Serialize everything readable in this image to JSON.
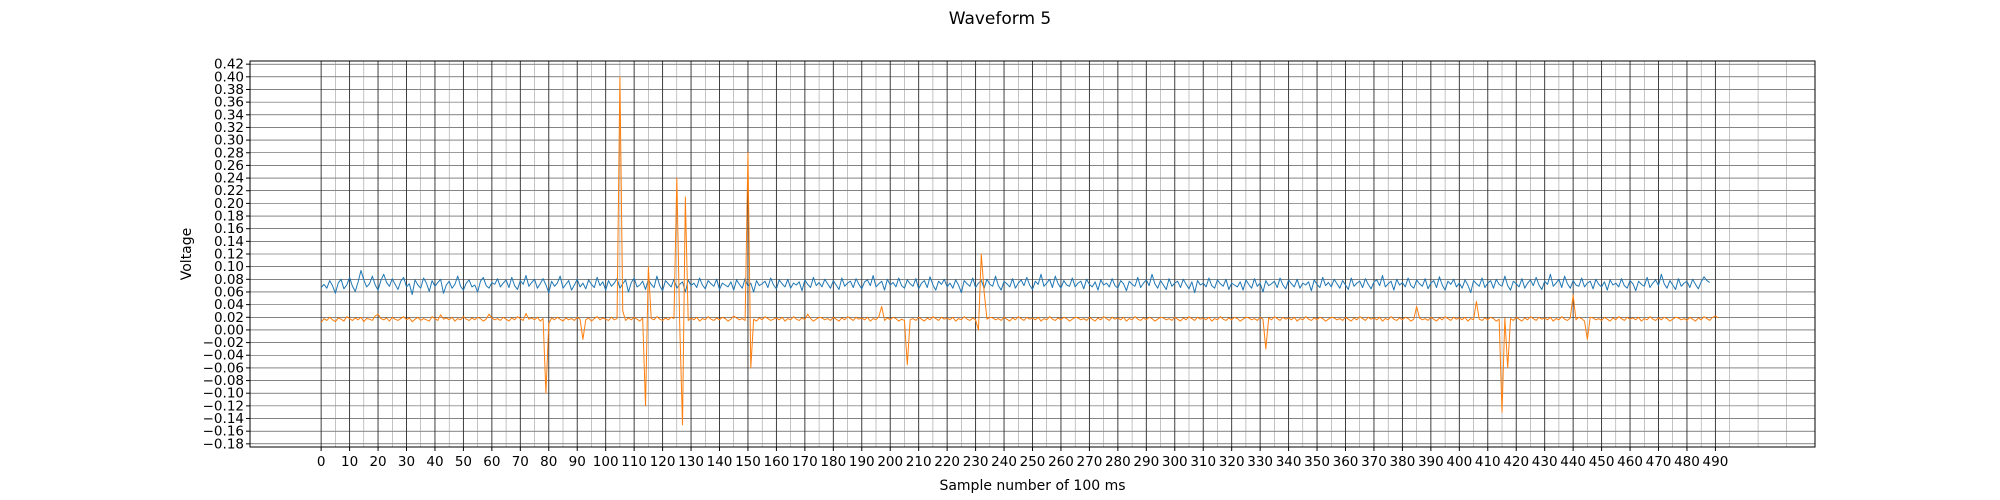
{
  "chart_data": {
    "type": "line",
    "title": "Waveform 5",
    "xlabel": "Sample number of 100 ms",
    "ylabel": "Voltage",
    "xlim": [
      -25,
      525
    ],
    "ylim": [
      -0.185,
      0.425
    ],
    "x_ticks": [
      0,
      10,
      20,
      30,
      40,
      50,
      60,
      70,
      80,
      90,
      100,
      110,
      120,
      130,
      140,
      150,
      160,
      170,
      180,
      190,
      200,
      210,
      220,
      230,
      240,
      250,
      260,
      270,
      280,
      290,
      300,
      310,
      320,
      330,
      340,
      350,
      360,
      370,
      380,
      390,
      400,
      410,
      420,
      430,
      440,
      450,
      460,
      470,
      480,
      490
    ],
    "x_tick_labels": [
      "0",
      "10",
      "20",
      "30",
      "40",
      "50",
      "60",
      "70",
      "80",
      "90",
      "100",
      "110",
      "120",
      "130",
      "140",
      "150",
      "160",
      "170",
      "180",
      "190",
      "200",
      "210",
      "220",
      "230",
      "240",
      "250",
      "260",
      "270",
      "280",
      "290",
      "300",
      "310",
      "320",
      "330",
      "340",
      "350",
      "360",
      "370",
      "380",
      "390",
      "400",
      "410",
      "420",
      "430",
      "440",
      "450",
      "460",
      "470",
      "480",
      "490"
    ],
    "y_ticks": [
      0.42,
      0.4,
      0.38,
      0.36,
      0.34,
      0.32,
      0.3,
      0.28,
      0.26,
      0.24,
      0.22,
      0.2,
      0.18,
      0.16,
      0.14,
      0.12,
      0.1,
      0.08,
      0.06,
      0.04,
      0.02,
      0.0,
      -0.02,
      -0.04,
      -0.06,
      -0.08,
      -0.1,
      -0.12,
      -0.14,
      -0.16,
      -0.18
    ],
    "y_tick_labels": [
      "0.42",
      "0.40",
      "0.38",
      "0.36",
      "0.34",
      "0.32",
      "0.30",
      "0.28",
      "0.26",
      "0.24",
      "0.22",
      "0.20",
      "0.18",
      "0.16",
      "0.14",
      "0.12",
      "0.10",
      "0.08",
      "0.06",
      "0.04",
      "0.02",
      "0.00",
      "−0.02",
      "−0.04",
      "−0.06",
      "−0.08",
      "−0.10",
      "−0.12",
      "−0.14",
      "−0.16",
      "−0.18"
    ],
    "grid": true,
    "grid_major_x_every": 10,
    "grid_minor_x_every": 5,
    "grid_y_every": 0.02,
    "series": [
      {
        "color": "#1f77b4",
        "x_start": 0,
        "x_step": 1,
        "values": [
          0.067,
          0.072,
          0.066,
          0.078,
          0.07,
          0.058,
          0.074,
          0.08,
          0.065,
          0.071,
          0.083,
          0.069,
          0.061,
          0.076,
          0.094,
          0.079,
          0.068,
          0.073,
          0.085,
          0.071,
          0.063,
          0.078,
          0.088,
          0.075,
          0.069,
          0.081,
          0.072,
          0.064,
          0.077,
          0.083,
          0.068,
          0.073,
          0.056,
          0.079,
          0.071,
          0.066,
          0.082,
          0.074,
          0.061,
          0.078,
          0.069,
          0.075,
          0.08,
          0.058,
          0.071,
          0.077,
          0.066,
          0.072,
          0.085,
          0.069,
          0.063,
          0.074,
          0.079,
          0.068,
          0.071,
          0.06,
          0.077,
          0.083,
          0.07,
          0.066,
          0.075,
          0.072,
          0.081,
          0.068,
          0.074,
          0.079,
          0.067,
          0.083,
          0.07,
          0.064,
          0.078,
          0.072,
          0.086,
          0.069,
          0.075,
          0.08,
          0.066,
          0.073,
          0.081,
          0.071,
          0.059,
          0.077,
          0.069,
          0.074,
          0.085,
          0.066,
          0.072,
          0.078,
          0.063,
          0.071,
          0.08,
          0.068,
          0.074,
          0.065,
          0.079,
          0.072,
          0.067,
          0.083,
          0.07,
          0.076,
          0.063,
          0.078,
          0.069,
          0.074,
          0.081,
          0.066,
          0.073,
          0.079,
          0.06,
          0.075,
          0.082,
          0.068,
          0.071,
          0.077,
          0.064,
          0.08,
          0.072,
          0.067,
          0.085,
          0.07,
          0.062,
          0.078,
          0.073,
          0.068,
          0.08,
          0.066,
          0.072,
          0.076,
          0.06,
          0.079,
          0.07,
          0.074,
          0.067,
          0.082,
          0.071,
          0.065,
          0.078,
          0.073,
          0.069,
          0.08,
          0.064,
          0.074,
          0.071,
          0.068,
          0.076,
          0.063,
          0.079,
          0.072,
          0.066,
          0.081,
          0.069,
          0.074,
          0.06,
          0.078,
          0.07,
          0.073,
          0.077,
          0.067,
          0.082,
          0.071,
          0.065,
          0.079,
          0.073,
          0.068,
          0.08,
          0.066,
          0.074,
          0.071,
          0.076,
          0.062,
          0.079,
          0.072,
          0.067,
          0.083,
          0.07,
          0.075,
          0.068,
          0.08,
          0.073,
          0.066,
          0.078,
          0.071,
          0.064,
          0.082,
          0.069,
          0.074,
          0.077,
          0.067,
          0.081,
          0.072,
          0.065,
          0.076,
          0.079,
          0.07,
          0.086,
          0.068,
          0.073,
          0.077,
          0.063,
          0.08,
          0.071,
          0.075,
          0.068,
          0.082,
          0.07,
          0.066,
          0.079,
          0.073,
          0.069,
          0.081,
          0.065,
          0.074,
          0.078,
          0.067,
          0.084,
          0.071,
          0.063,
          0.077,
          0.072,
          0.08,
          0.068,
          0.074,
          0.066,
          0.079,
          0.071,
          0.059,
          0.078,
          0.073,
          0.069,
          0.082,
          0.067,
          0.074,
          0.078,
          0.066,
          0.08,
          0.072,
          0.069,
          0.085,
          0.07,
          0.063,
          0.077,
          0.073,
          0.068,
          0.081,
          0.066,
          0.074,
          0.079,
          0.07,
          0.083,
          0.071,
          0.064,
          0.077,
          0.072,
          0.088,
          0.069,
          0.074,
          0.08,
          0.067,
          0.085,
          0.073,
          0.066,
          0.078,
          0.071,
          0.069,
          0.082,
          0.068,
          0.074,
          0.077,
          0.065,
          0.08,
          0.072,
          0.068,
          0.076,
          0.063,
          0.079,
          0.071,
          0.074,
          0.068,
          0.081,
          0.07,
          0.066,
          0.078,
          0.073,
          0.062,
          0.077,
          0.072,
          0.069,
          0.083,
          0.067,
          0.074,
          0.079,
          0.07,
          0.088,
          0.073,
          0.066,
          0.078,
          0.071,
          0.064,
          0.081,
          0.069,
          0.074,
          0.077,
          0.067,
          0.08,
          0.072,
          0.065,
          0.076,
          0.059,
          0.078,
          0.071,
          0.074,
          0.068,
          0.082,
          0.07,
          0.066,
          0.079,
          0.073,
          0.069,
          0.08,
          0.064,
          0.074,
          0.071,
          0.068,
          0.076,
          0.063,
          0.079,
          0.072,
          0.066,
          0.081,
          0.069,
          0.074,
          0.06,
          0.078,
          0.07,
          0.073,
          0.077,
          0.067,
          0.082,
          0.071,
          0.065,
          0.079,
          0.073,
          0.068,
          0.08,
          0.066,
          0.074,
          0.071,
          0.076,
          0.062,
          0.079,
          0.072,
          0.067,
          0.083,
          0.07,
          0.075,
          0.068,
          0.08,
          0.073,
          0.066,
          0.078,
          0.071,
          0.064,
          0.082,
          0.069,
          0.074,
          0.077,
          0.067,
          0.081,
          0.072,
          0.065,
          0.076,
          0.079,
          0.07,
          0.086,
          0.068,
          0.073,
          0.077,
          0.063,
          0.08,
          0.071,
          0.075,
          0.068,
          0.082,
          0.07,
          0.066,
          0.079,
          0.073,
          0.069,
          0.081,
          0.065,
          0.074,
          0.078,
          0.067,
          0.084,
          0.071,
          0.063,
          0.077,
          0.072,
          0.08,
          0.068,
          0.074,
          0.066,
          0.079,
          0.071,
          0.059,
          0.078,
          0.073,
          0.069,
          0.082,
          0.067,
          0.074,
          0.078,
          0.066,
          0.08,
          0.072,
          0.069,
          0.085,
          0.07,
          0.063,
          0.077,
          0.073,
          0.068,
          0.081,
          0.066,
          0.074,
          0.079,
          0.07,
          0.083,
          0.071,
          0.064,
          0.077,
          0.072,
          0.088,
          0.069,
          0.074,
          0.08,
          0.067,
          0.085,
          0.073,
          0.066,
          0.078,
          0.071,
          0.069,
          0.082,
          0.068,
          0.074,
          0.077,
          0.065,
          0.08,
          0.072,
          0.068,
          0.076,
          0.063,
          0.079,
          0.071,
          0.074,
          0.068,
          0.081,
          0.07,
          0.066,
          0.078,
          0.073,
          0.062,
          0.077,
          0.072,
          0.069,
          0.083,
          0.067,
          0.074,
          0.079,
          0.07,
          0.088,
          0.073,
          0.066,
          0.078,
          0.071,
          0.064,
          0.081,
          0.069,
          0.074,
          0.077,
          0.067,
          0.08,
          0.072,
          0.065,
          0.076,
          0.084,
          0.078,
          0.075
        ]
      },
      {
        "color": "#ff7f0e",
        "x_start": 0,
        "x_step": 1,
        "values": [
          0.012,
          0.018,
          0.015,
          0.02,
          0.016,
          0.013,
          0.019,
          0.017,
          0.014,
          0.021,
          0.018,
          0.015,
          0.019,
          0.016,
          0.02,
          0.013,
          0.018,
          0.017,
          0.015,
          0.022,
          0.025,
          0.018,
          0.016,
          0.019,
          0.014,
          0.02,
          0.017,
          0.015,
          0.018,
          0.021,
          0.016,
          0.019,
          0.013,
          0.017,
          0.02,
          0.015,
          0.018,
          0.016,
          0.014,
          0.021,
          0.018,
          0.015,
          0.024,
          0.017,
          0.019,
          0.016,
          0.02,
          0.014,
          0.018,
          0.016,
          0.021,
          0.017,
          0.015,
          0.019,
          0.016,
          0.02,
          0.018,
          0.014,
          0.017,
          0.025,
          0.019,
          0.016,
          0.018,
          0.015,
          0.02,
          0.017,
          0.014,
          0.019,
          0.016,
          0.021,
          0.018,
          0.015,
          0.026,
          0.017,
          0.019,
          0.016,
          0.02,
          0.014,
          0.018,
          -0.1,
          0.01,
          0.019,
          0.016,
          0.02,
          0.017,
          0.014,
          0.019,
          0.016,
          0.018,
          0.015,
          0.02,
          0.017,
          -0.015,
          0.016,
          0.019,
          0.014,
          0.018,
          0.021,
          0.016,
          0.019,
          0.017,
          0.015,
          0.02,
          0.016,
          0.018,
          0.4,
          0.03,
          0.015,
          0.019,
          0.016,
          0.02,
          0.017,
          0.014,
          0.019,
          -0.12,
          0.1,
          0.018,
          0.016,
          0.021,
          0.017,
          0.015,
          0.019,
          0.016,
          0.02,
          0.018,
          0.24,
          0.012,
          -0.15,
          0.21,
          0.015,
          0.019,
          0.016,
          0.02,
          0.014,
          0.018,
          0.016,
          0.021,
          0.017,
          0.015,
          0.019,
          0.016,
          0.02,
          0.018,
          0.014,
          0.017,
          0.022,
          0.019,
          0.016,
          0.018,
          0.015,
          0.28,
          -0.06,
          0.017,
          0.014,
          0.019,
          0.016,
          0.021,
          0.018,
          0.015,
          0.017,
          0.019,
          0.016,
          0.02,
          0.014,
          0.018,
          0.016,
          0.021,
          0.017,
          0.015,
          0.019,
          0.016,
          0.025,
          0.018,
          0.014,
          0.017,
          0.02,
          0.019,
          0.016,
          0.018,
          0.015,
          0.02,
          0.017,
          0.014,
          0.019,
          0.016,
          0.021,
          0.018,
          0.015,
          0.02,
          0.017,
          0.019,
          0.016,
          0.02,
          0.014,
          0.018,
          0.016,
          0.021,
          0.037,
          0.015,
          0.019,
          0.016,
          0.02,
          0.018,
          0.014,
          0.017,
          0.015,
          -0.055,
          0.016,
          0.018,
          0.015,
          0.02,
          0.017,
          0.014,
          0.019,
          0.016,
          0.021,
          0.018,
          0.015,
          0.02,
          0.017,
          0.019,
          0.016,
          0.02,
          0.014,
          0.018,
          0.016,
          0.021,
          0.017,
          0.015,
          0.019,
          0.016,
          0.0,
          0.12,
          0.06,
          0.017,
          0.02,
          0.019,
          0.016,
          0.018,
          0.015,
          0.02,
          0.017,
          0.014,
          0.019,
          0.016,
          0.021,
          0.018,
          0.015,
          0.02,
          0.017,
          0.019,
          0.016,
          0.02,
          0.014,
          0.018,
          0.016,
          0.021,
          0.017,
          0.015,
          0.019,
          0.016,
          0.02,
          0.018,
          0.014,
          0.017,
          0.02,
          0.019,
          0.016,
          0.018,
          0.015,
          0.02,
          0.017,
          0.014,
          0.019,
          0.016,
          0.021,
          0.018,
          0.015,
          0.02,
          0.017,
          0.019,
          0.016,
          0.02,
          0.014,
          0.018,
          0.016,
          0.021,
          0.017,
          0.015,
          0.019,
          0.016,
          0.02,
          0.018,
          0.014,
          0.017,
          0.02,
          0.019,
          0.016,
          0.018,
          0.015,
          0.02,
          0.017,
          0.014,
          0.019,
          0.016,
          0.021,
          0.018,
          0.015,
          0.02,
          0.017,
          0.019,
          0.016,
          0.02,
          0.014,
          0.018,
          0.016,
          0.021,
          0.017,
          0.015,
          0.019,
          0.016,
          0.02,
          0.018,
          0.014,
          0.017,
          0.02,
          0.019,
          0.016,
          0.018,
          0.015,
          0.02,
          0.017,
          -0.03,
          0.019,
          0.016,
          0.021,
          0.018,
          0.015,
          0.02,
          0.017,
          0.019,
          0.016,
          0.02,
          0.014,
          0.018,
          0.016,
          0.021,
          0.017,
          0.015,
          0.019,
          0.016,
          0.02,
          0.018,
          0.014,
          0.017,
          0.02,
          0.019,
          0.016,
          0.018,
          0.015,
          0.02,
          0.017,
          0.014,
          0.019,
          0.016,
          0.021,
          0.018,
          0.015,
          0.02,
          0.017,
          0.019,
          0.016,
          0.02,
          0.014,
          0.018,
          0.016,
          0.021,
          0.017,
          0.015,
          0.019,
          0.016,
          0.02,
          0.018,
          0.014,
          0.017,
          0.037,
          0.019,
          0.016,
          0.018,
          0.015,
          0.02,
          0.017,
          0.014,
          0.019,
          0.016,
          0.021,
          0.018,
          0.015,
          0.02,
          0.017,
          0.019,
          0.016,
          0.02,
          0.014,
          0.018,
          0.016,
          0.045,
          0.017,
          0.015,
          0.019,
          0.016,
          0.02,
          0.018,
          0.014,
          0.017,
          -0.13,
          0.019,
          -0.06,
          0.018,
          0.015,
          0.02,
          0.017,
          0.014,
          0.019,
          0.016,
          0.021,
          0.018,
          0.015,
          0.02,
          0.017,
          0.019,
          0.016,
          0.02,
          0.014,
          0.018,
          0.016,
          0.021,
          0.017,
          0.015,
          0.019,
          0.055,
          0.016,
          0.02,
          0.018,
          0.014,
          -0.015,
          0.02,
          0.019,
          0.016,
          0.018,
          0.015,
          0.02,
          0.017,
          0.014,
          0.019,
          0.016,
          0.021,
          0.018,
          0.015,
          0.02,
          0.017,
          0.019,
          0.016,
          0.02,
          0.014,
          0.018,
          0.016,
          0.021,
          0.017,
          0.015,
          0.019,
          0.016,
          0.02,
          0.018,
          0.014,
          0.017,
          0.02,
          0.019,
          0.016,
          0.018,
          0.015,
          0.02,
          0.017,
          0.014,
          0.019,
          0.016,
          0.021,
          0.018,
          0.015,
          0.02,
          0.022,
          0.019
        ]
      }
    ]
  }
}
